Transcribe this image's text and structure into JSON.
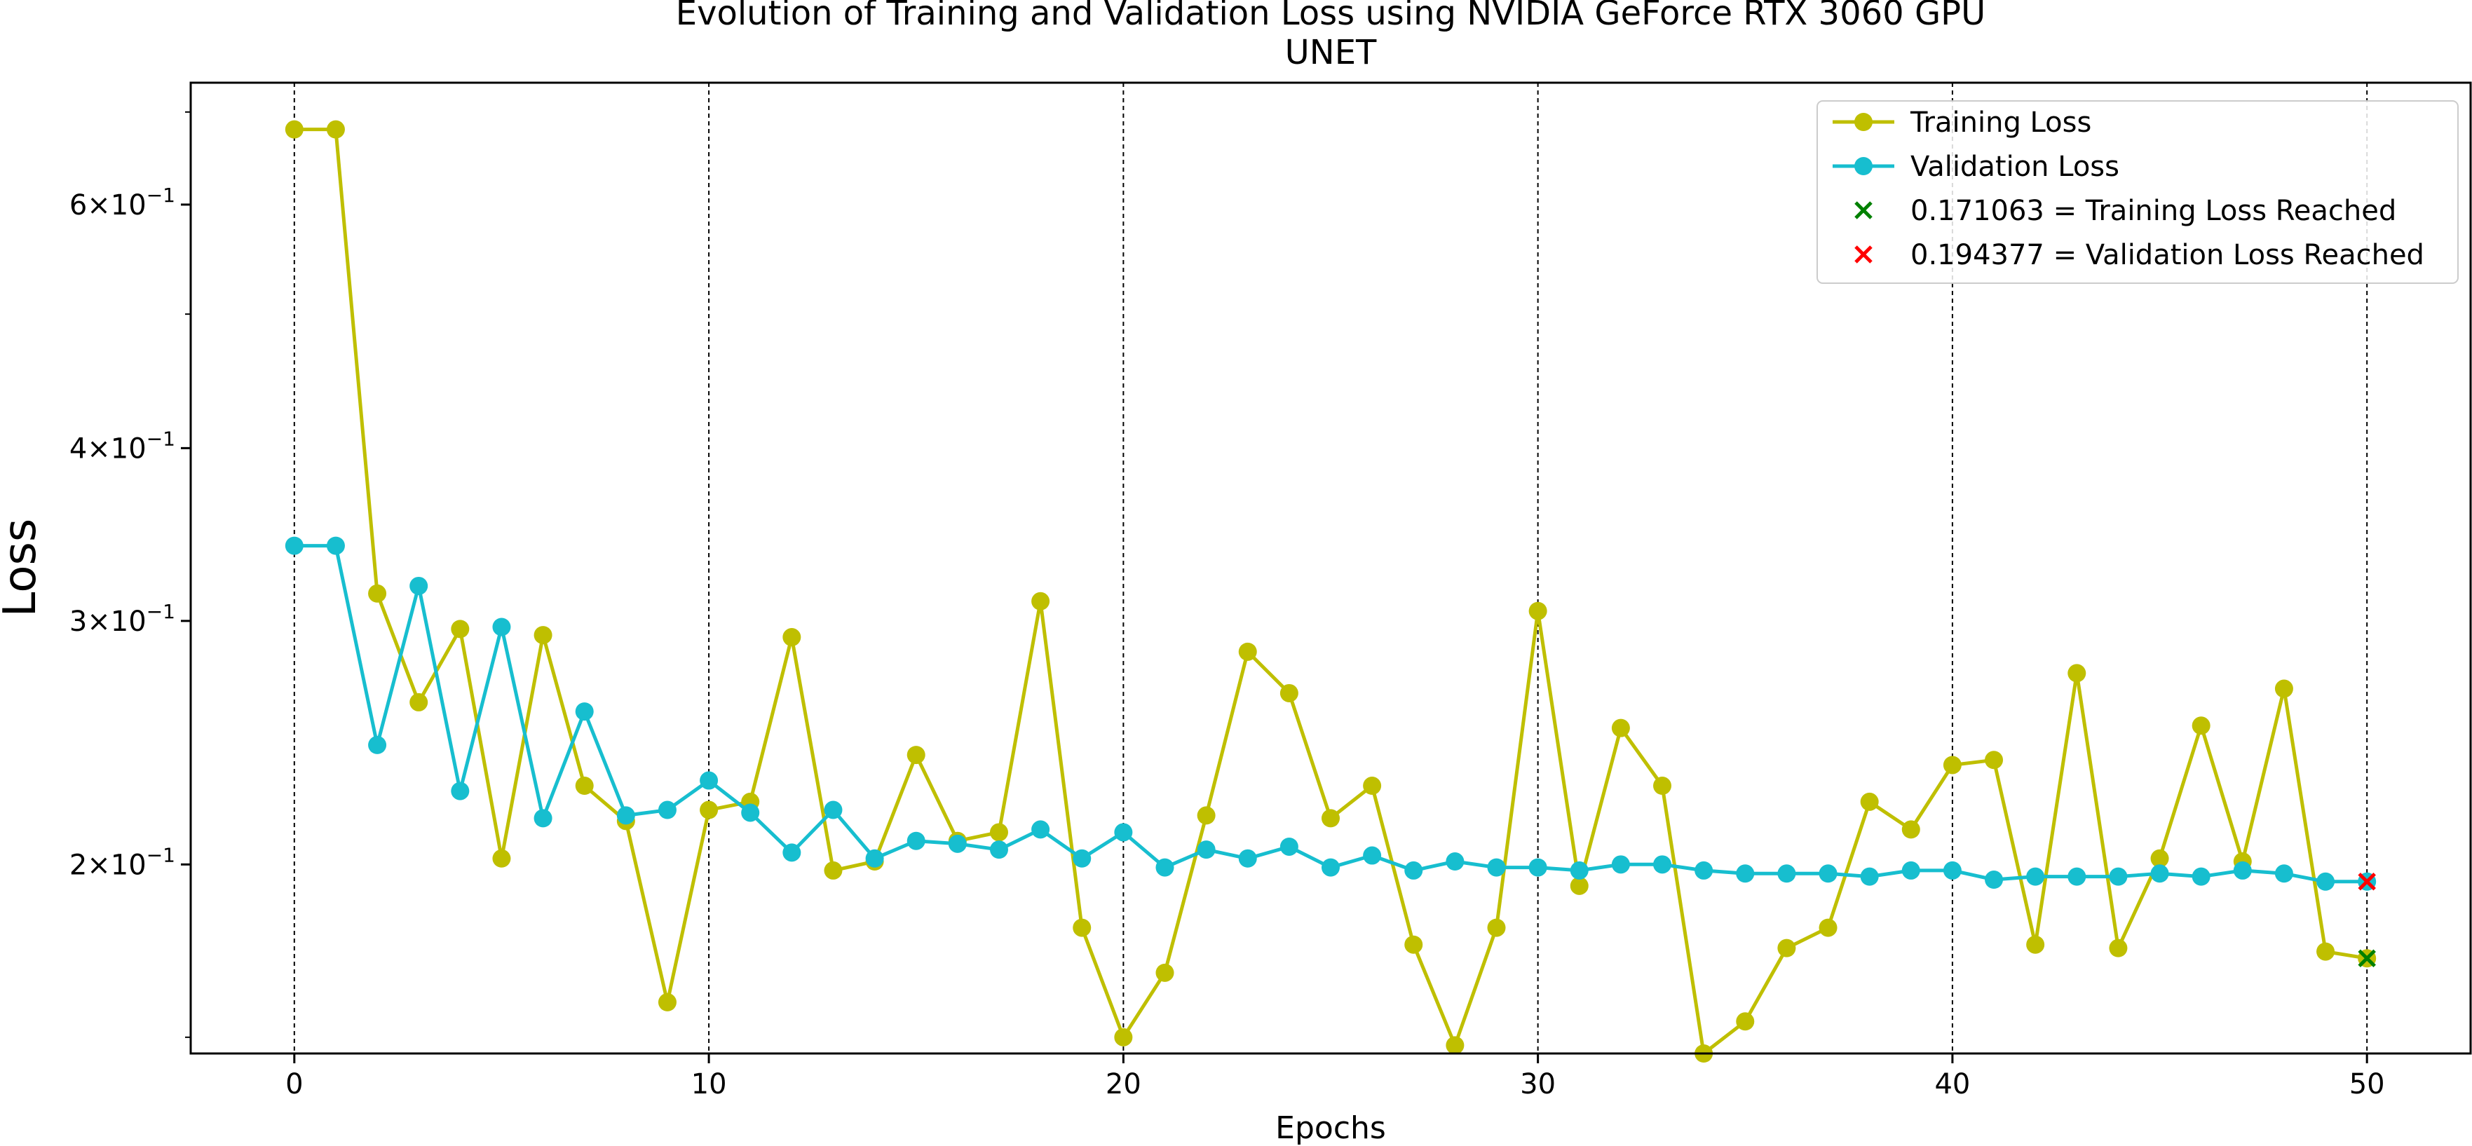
{
  "chart_data": {
    "type": "line",
    "title": "Evolution of Training and Validation Loss using NVIDIA GeForce RTX 3060 GPU",
    "subtitle": "UNET",
    "xlabel": "Epochs",
    "ylabel": "Loss",
    "xlim": [
      -2.5,
      52.5
    ],
    "ylim": [
      0.146,
      0.735
    ],
    "y_scale": "log",
    "x_ticks": [
      0,
      10,
      20,
      30,
      40,
      50
    ],
    "x_tick_labels": [
      "0",
      "10",
      "20",
      "30",
      "40",
      "50"
    ],
    "y_ticks": [
      0.2,
      0.3,
      0.4,
      0.6
    ],
    "y_tick_labels": [
      {
        "mant": "2",
        "exp": "−1"
      },
      {
        "mant": "3",
        "exp": "−1"
      },
      {
        "mant": "4",
        "exp": "−1"
      },
      {
        "mant": "6",
        "exp": "−1"
      }
    ],
    "vlines": [
      0,
      10,
      20,
      30,
      40,
      50
    ],
    "grid": false,
    "legend_position": "top-right",
    "x": [
      0,
      1,
      2,
      3,
      4,
      5,
      6,
      7,
      8,
      9,
      10,
      11,
      12,
      13,
      14,
      15,
      16,
      17,
      18,
      19,
      20,
      21,
      22,
      23,
      24,
      25,
      26,
      27,
      28,
      29,
      30,
      31,
      32,
      33,
      34,
      35,
      36,
      37,
      38,
      39,
      40,
      41,
      42,
      43,
      44,
      45,
      46,
      47,
      48,
      49,
      50
    ],
    "series": [
      {
        "name": "Training Loss",
        "color": "#bfbf00",
        "values": [
          0.68,
          0.68,
          0.314,
          0.262,
          0.296,
          0.202,
          0.293,
          0.228,
          0.215,
          0.159,
          0.219,
          0.222,
          0.292,
          0.198,
          0.201,
          0.24,
          0.208,
          0.211,
          0.31,
          0.18,
          0.15,
          0.167,
          0.217,
          0.285,
          0.266,
          0.216,
          0.228,
          0.175,
          0.148,
          0.18,
          0.305,
          0.193,
          0.251,
          0.228,
          0.146,
          0.154,
          0.174,
          0.18,
          0.222,
          0.212,
          0.236,
          0.238,
          0.175,
          0.275,
          0.174,
          0.202,
          0.252,
          0.201,
          0.268,
          0.173,
          0.171063
        ]
      },
      {
        "name": "Validation Loss",
        "color": "#17becf",
        "values": [
          0.34,
          0.34,
          0.244,
          0.318,
          0.226,
          0.297,
          0.216,
          0.258,
          0.217,
          0.219,
          0.23,
          0.218,
          0.204,
          0.219,
          0.202,
          0.208,
          0.207,
          0.205,
          0.212,
          0.202,
          0.211,
          0.199,
          0.205,
          0.202,
          0.206,
          0.199,
          0.203,
          0.198,
          0.201,
          0.199,
          0.199,
          0.198,
          0.2,
          0.2,
          0.198,
          0.197,
          0.197,
          0.197,
          0.196,
          0.198,
          0.198,
          0.195,
          0.196,
          0.196,
          0.196,
          0.197,
          0.196,
          0.198,
          0.197,
          0.194377,
          0.194377
        ]
      }
    ],
    "markers": [
      {
        "name": "0.171063 = Training Loss Reached",
        "x": 50,
        "y": 0.171063,
        "color": "#008000",
        "symbol": "x"
      },
      {
        "name": "0.194377 = Validation Loss Reached",
        "x": 50,
        "y": 0.194377,
        "color": "#ff0000",
        "symbol": "x"
      }
    ]
  }
}
